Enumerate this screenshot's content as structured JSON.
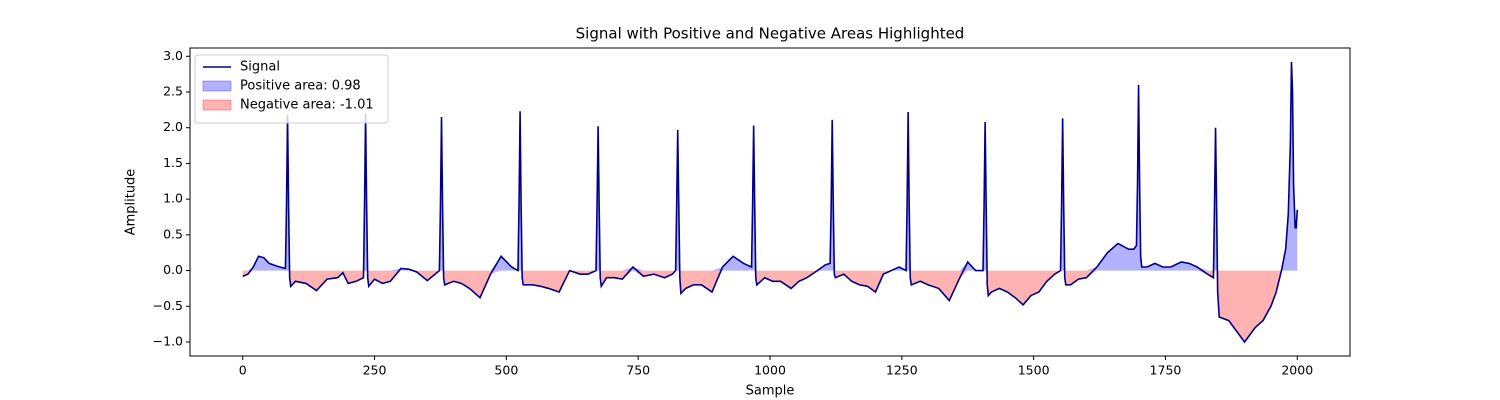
{
  "chart_data": {
    "type": "line",
    "title": "Signal with Positive and Negative Areas Highlighted",
    "x_label": "Sample",
    "y_label": "Amplitude",
    "x": [
      0,
      10,
      20,
      30,
      40,
      50,
      70,
      81,
      83,
      85,
      87,
      89,
      91,
      100,
      120,
      140,
      160,
      180,
      190,
      200,
      215,
      229,
      231,
      233,
      235,
      237,
      239,
      250,
      265,
      280,
      300,
      315,
      330,
      350,
      365,
      373,
      375,
      377,
      379,
      381,
      383,
      400,
      415,
      430,
      450,
      470,
      490,
      510,
      522,
      524,
      526,
      528,
      530,
      532,
      550,
      565,
      580,
      600,
      620,
      640,
      655,
      670,
      672,
      674,
      676,
      678,
      680,
      690,
      705,
      720,
      740,
      760,
      780,
      800,
      815,
      821,
      823,
      825,
      827,
      829,
      831,
      840,
      855,
      870,
      890,
      910,
      930,
      950,
      965,
      967,
      969,
      971,
      973,
      975,
      990,
      1005,
      1020,
      1040,
      1055,
      1070,
      1090,
      1105,
      1114,
      1116,
      1118,
      1120,
      1122,
      1124,
      1140,
      1155,
      1170,
      1185,
      1200,
      1215,
      1230,
      1245,
      1258,
      1260,
      1262,
      1264,
      1266,
      1268,
      1285,
      1300,
      1320,
      1340,
      1360,
      1375,
      1390,
      1404,
      1406,
      1408,
      1410,
      1412,
      1414,
      1420,
      1435,
      1450,
      1465,
      1480,
      1495,
      1510,
      1525,
      1540,
      1551,
      1553,
      1555,
      1557,
      1559,
      1561,
      1570,
      1585,
      1600,
      1620,
      1640,
      1660,
      1680,
      1690,
      1695,
      1697,
      1699,
      1701,
      1703,
      1705,
      1715,
      1730,
      1745,
      1760,
      1780,
      1795,
      1810,
      1830,
      1841,
      1843,
      1845,
      1847,
      1849,
      1852,
      1870,
      1885,
      1900,
      1910,
      1920,
      1935,
      1950,
      1960,
      1970,
      1978,
      1983,
      1987,
      1989,
      1991,
      1993,
      1996,
      1998,
      2000
    ],
    "series": [
      {
        "name": "Signal",
        "color": "#00008b",
        "values": [
          -0.08,
          -0.05,
          0.05,
          0.2,
          0.18,
          0.1,
          0.05,
          0.03,
          0.9,
          2.18,
          0.9,
          -0.1,
          -0.22,
          -0.15,
          -0.18,
          -0.28,
          -0.12,
          -0.1,
          -0.03,
          -0.18,
          -0.15,
          -0.1,
          0.9,
          2.2,
          0.9,
          -0.1,
          -0.22,
          -0.12,
          -0.18,
          -0.15,
          0.03,
          0.02,
          -0.02,
          -0.14,
          -0.05,
          0.0,
          0.9,
          2.15,
          0.9,
          -0.1,
          -0.2,
          -0.15,
          -0.18,
          -0.25,
          -0.38,
          -0.05,
          0.2,
          0.05,
          0.0,
          0.9,
          2.23,
          0.9,
          -0.1,
          -0.2,
          -0.2,
          -0.22,
          -0.25,
          -0.3,
          0.0,
          -0.05,
          -0.05,
          0.0,
          0.9,
          2.02,
          0.9,
          -0.1,
          -0.22,
          -0.1,
          -0.1,
          -0.12,
          0.05,
          -0.08,
          -0.05,
          -0.1,
          -0.05,
          0.0,
          0.9,
          1.97,
          0.9,
          -0.1,
          -0.32,
          -0.25,
          -0.2,
          -0.2,
          -0.3,
          0.05,
          0.2,
          0.1,
          0.05,
          0.9,
          2.03,
          0.9,
          -0.1,
          -0.2,
          -0.1,
          -0.15,
          -0.15,
          -0.25,
          -0.15,
          -0.1,
          0.0,
          0.08,
          0.1,
          0.9,
          2.11,
          0.9,
          -0.05,
          -0.1,
          -0.05,
          -0.15,
          -0.2,
          -0.22,
          -0.3,
          -0.05,
          0.0,
          0.05,
          0.0,
          0.9,
          2.22,
          0.9,
          -0.1,
          -0.2,
          -0.15,
          -0.2,
          -0.25,
          -0.42,
          -0.1,
          0.12,
          0.0,
          0.0,
          0.9,
          2.08,
          0.9,
          -0.2,
          -0.35,
          -0.3,
          -0.25,
          -0.3,
          -0.38,
          -0.48,
          -0.35,
          -0.3,
          -0.15,
          -0.05,
          0.0,
          0.9,
          2.13,
          0.9,
          -0.1,
          -0.2,
          -0.2,
          -0.12,
          -0.1,
          0.05,
          0.25,
          0.38,
          0.3,
          0.3,
          0.35,
          1.2,
          2.6,
          1.2,
          0.2,
          0.05,
          0.05,
          0.1,
          0.05,
          0.05,
          0.12,
          0.1,
          0.05,
          -0.05,
          -0.1,
          0.9,
          2.0,
          0.9,
          -0.3,
          -0.65,
          -0.7,
          -0.85,
          -1.0,
          -0.9,
          -0.8,
          -0.7,
          -0.5,
          -0.3,
          0.0,
          0.3,
          0.8,
          1.8,
          2.92,
          2.5,
          1.2,
          0.6,
          0.6,
          0.85
        ]
      }
    ],
    "fills": [
      {
        "name": "Positive area: 0.98",
        "color": "#0000ff",
        "side": "positive"
      },
      {
        "name": "Negative area: -1.01",
        "color": "#ff0000",
        "side": "negative"
      }
    ],
    "xlim": [
      -100,
      2100
    ],
    "ylim": [
      -1.196,
      3.116
    ],
    "xticks": [
      0,
      250,
      500,
      750,
      1000,
      1250,
      1500,
      1750,
      2000
    ],
    "yticks": [
      {
        "value": -1.0,
        "label": "−1.0"
      },
      {
        "value": -0.5,
        "label": "−0.5"
      },
      {
        "value": 0.0,
        "label": "0.0"
      },
      0.5,
      {
        "value": 1.0,
        "label": "1.0"
      },
      1.5,
      {
        "value": 2.0,
        "label": "2.0"
      },
      2.5,
      {
        "value": 3.0,
        "label": "3.0"
      }
    ],
    "legend": "upper left",
    "grid": false
  }
}
